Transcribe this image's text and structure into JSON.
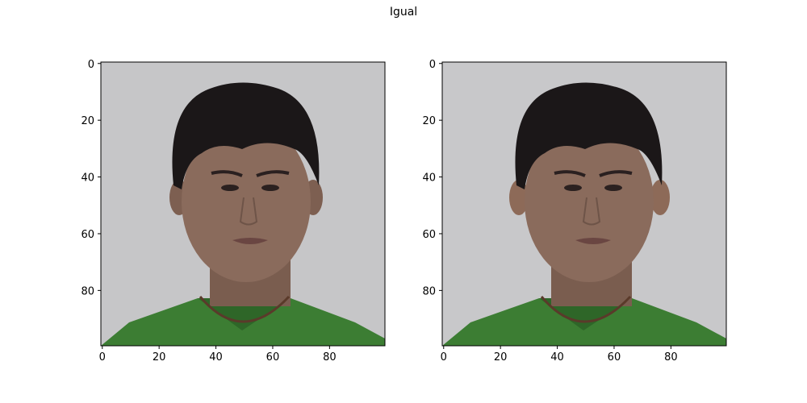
{
  "figure": {
    "title": "Igual"
  },
  "panels": [
    {
      "name": "left",
      "x_ticks": [
        "0",
        "20",
        "40",
        "60",
        "80"
      ],
      "y_ticks": [
        "0",
        "20",
        "40",
        "60",
        "80"
      ],
      "x_range": [
        -0.5,
        99.5
      ],
      "y_range": [
        -0.5,
        99.5
      ]
    },
    {
      "name": "right",
      "x_ticks": [
        "0",
        "20",
        "40",
        "60",
        "80"
      ],
      "y_ticks": [
        "0",
        "20",
        "40",
        "60",
        "80"
      ],
      "x_range": [
        -0.5,
        99.5
      ],
      "y_range": [
        -0.5,
        99.5
      ]
    }
  ],
  "colors": {
    "background": "#c6c6c8",
    "hair": "#1b1718",
    "skin": "#8a6b5c",
    "skin_shadow": "#6e5448",
    "shirt": "#3c7d33",
    "shirt_dark": "#2e6628",
    "necklace": "#5a3a2a"
  }
}
